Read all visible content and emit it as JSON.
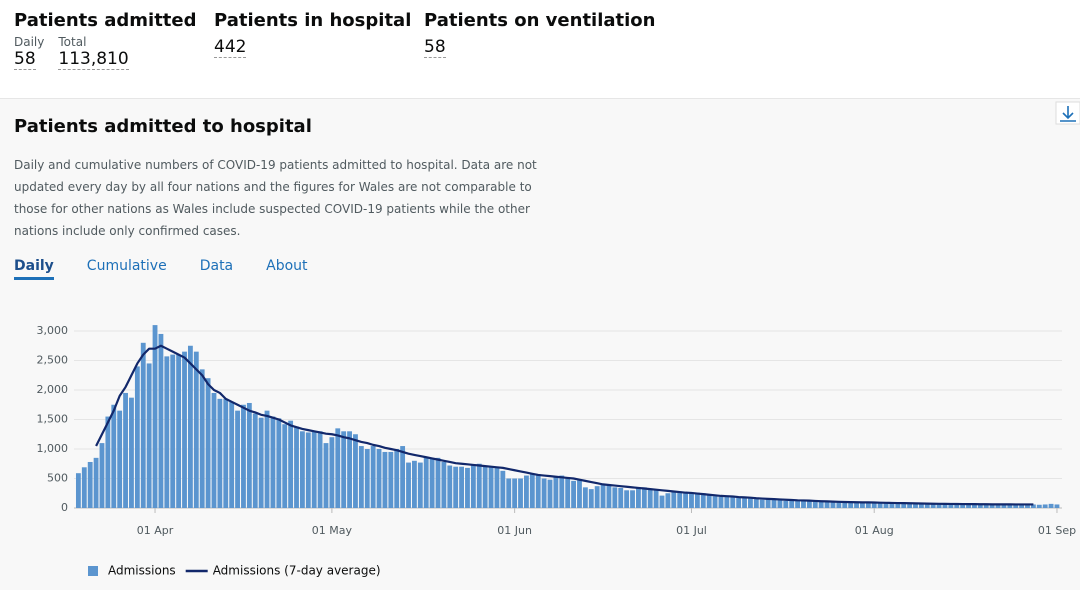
{
  "headline": [
    {
      "title": "Patients admitted",
      "items": [
        {
          "label": "Daily",
          "value": "58"
        },
        {
          "label": "Total",
          "value": "113,810"
        }
      ]
    },
    {
      "title": "Patients in hospital",
      "items": [
        {
          "value": "442"
        }
      ]
    },
    {
      "title": "Patients on ventilation",
      "items": [
        {
          "value": "58"
        }
      ]
    }
  ],
  "card": {
    "title": "Patients admitted to hospital",
    "description": "Daily and cumulative numbers of COVID-19 patients admitted to hospital. Data are not updated every day by all four nations and the figures for Wales are not comparable to those for other nations as Wales include suspected COVID-19 patients while the other nations include only confirmed cases.",
    "tabs": [
      "Daily",
      "Cumulative",
      "Data",
      "About"
    ]
  },
  "chart_data": {
    "type": "bar",
    "categories": [
      null,
      null,
      null,
      null,
      null,
      null,
      null,
      null,
      null,
      null,
      null,
      null,
      null,
      "01 Apr",
      null,
      null,
      null,
      null,
      null,
      null,
      null,
      null,
      null,
      null,
      null,
      null,
      null,
      null,
      null,
      null,
      null,
      null,
      null,
      null,
      null,
      null,
      null,
      null,
      null,
      null,
      null,
      null,
      null,
      "01 May",
      null,
      null,
      null,
      null,
      null,
      null,
      null,
      null,
      null,
      null,
      null,
      null,
      null,
      null,
      null,
      null,
      null,
      null,
      null,
      null,
      null,
      null,
      null,
      null,
      null,
      null,
      null,
      null,
      null,
      null,
      "01 Jun",
      null,
      null,
      null,
      null,
      null,
      null,
      null,
      null,
      null,
      null,
      null,
      null,
      null,
      null,
      null,
      null,
      null,
      null,
      null,
      null,
      null,
      null,
      null,
      null,
      null,
      null,
      null,
      null,
      null,
      "01 Jul",
      null,
      null,
      null,
      null,
      null,
      null,
      null,
      null,
      null,
      null,
      null,
      null,
      null,
      null,
      null,
      null,
      null,
      null,
      null,
      null,
      null,
      null,
      null,
      null,
      null,
      null,
      null,
      null,
      null,
      null,
      "01 Aug",
      null,
      null,
      null,
      null,
      null,
      null,
      null,
      null,
      null,
      null,
      null,
      null,
      null,
      null,
      null,
      null,
      null,
      null,
      null,
      null,
      null,
      null,
      null,
      null,
      null,
      null,
      null,
      null,
      null,
      null,
      "01 Sep"
    ],
    "series": [
      {
        "name": "Admissions",
        "type": "bar",
        "color": "#5b95cf",
        "values": [
          590,
          690,
          780,
          850,
          1100,
          1550,
          1750,
          1650,
          1950,
          1870,
          2400,
          2800,
          2450,
          3100,
          2950,
          2570,
          2600,
          2600,
          2650,
          2750,
          2650,
          2350,
          2200,
          1950,
          1850,
          1850,
          1800,
          1650,
          1750,
          1780,
          1600,
          1530,
          1650,
          1550,
          1520,
          1420,
          1480,
          1380,
          1300,
          1280,
          1300,
          1300,
          1100,
          1200,
          1350,
          1300,
          1300,
          1250,
          1050,
          1000,
          1050,
          1000,
          950,
          950,
          1000,
          1050,
          770,
          800,
          770,
          870,
          850,
          850,
          780,
          720,
          700,
          700,
          680,
          720,
          750,
          700,
          700,
          690,
          630,
          500,
          500,
          500,
          550,
          570,
          570,
          500,
          480,
          530,
          550,
          500,
          460,
          470,
          350,
          320,
          370,
          400,
          390,
          350,
          340,
          300,
          300,
          340,
          350,
          330,
          320,
          210,
          250,
          270,
          280,
          260,
          250,
          260,
          250,
          220,
          200,
          190,
          210,
          190,
          180,
          180,
          170,
          150,
          140,
          150,
          160,
          140,
          120,
          130,
          140,
          130,
          120,
          110,
          120,
          110,
          100,
          100,
          110,
          100,
          90,
          100,
          95,
          90,
          85,
          100,
          90,
          90,
          85,
          80,
          80,
          75,
          80,
          70,
          80,
          75,
          70,
          75,
          70,
          65,
          70,
          65,
          60,
          65,
          60,
          60,
          65,
          60,
          55,
          60,
          60,
          55,
          60,
          70,
          60
        ]
      },
      {
        "name": "Admissions (7-day average)",
        "type": "line",
        "color": "#12286b",
        "values": [
          null,
          null,
          null,
          1050,
          1250,
          1450,
          1650,
          1900,
          2050,
          2250,
          2450,
          2600,
          2700,
          2700,
          2750,
          2700,
          2650,
          2600,
          2550,
          2450,
          2350,
          2250,
          2100,
          2000,
          1950,
          1850,
          1800,
          1750,
          1700,
          1650,
          1620,
          1580,
          1560,
          1530,
          1500,
          1450,
          1400,
          1370,
          1340,
          1320,
          1300,
          1280,
          1260,
          1250,
          1230,
          1200,
          1180,
          1150,
          1120,
          1100,
          1070,
          1050,
          1020,
          1000,
          980,
          950,
          920,
          900,
          880,
          860,
          840,
          820,
          800,
          780,
          760,
          750,
          740,
          730,
          720,
          710,
          700,
          690,
          680,
          660,
          640,
          620,
          600,
          580,
          560,
          550,
          540,
          530,
          520,
          510,
          500,
          480,
          460,
          440,
          420,
          400,
          390,
          380,
          370,
          360,
          350,
          340,
          330,
          320,
          310,
          300,
          290,
          280,
          270,
          260,
          255,
          245,
          235,
          225,
          215,
          205,
          200,
          195,
          185,
          180,
          175,
          165,
          160,
          155,
          150,
          145,
          140,
          135,
          130,
          128,
          125,
          120,
          115,
          112,
          108,
          105,
          102,
          100,
          98,
          96,
          95,
          93,
          90,
          88,
          86,
          84,
          82,
          80,
          78,
          76,
          74,
          72,
          71,
          70,
          69,
          68,
          67,
          66,
          65,
          64,
          63,
          62,
          62,
          61,
          61,
          60,
          60,
          60,
          60,
          null,
          null,
          null,
          null
        ]
      }
    ],
    "ylim": [
      0,
      3000
    ],
    "yticks": [
      0,
      500,
      {
        "value": 1000,
        "label": "1,000"
      },
      {
        "value": 1500,
        "label": "1,500"
      },
      {
        "value": 2000,
        "label": "2,000"
      },
      {
        "value": 2500,
        "label": "2,500"
      },
      {
        "value": 3000,
        "label": "3,000"
      }
    ],
    "grid": true,
    "legend": "bottom-left"
  }
}
